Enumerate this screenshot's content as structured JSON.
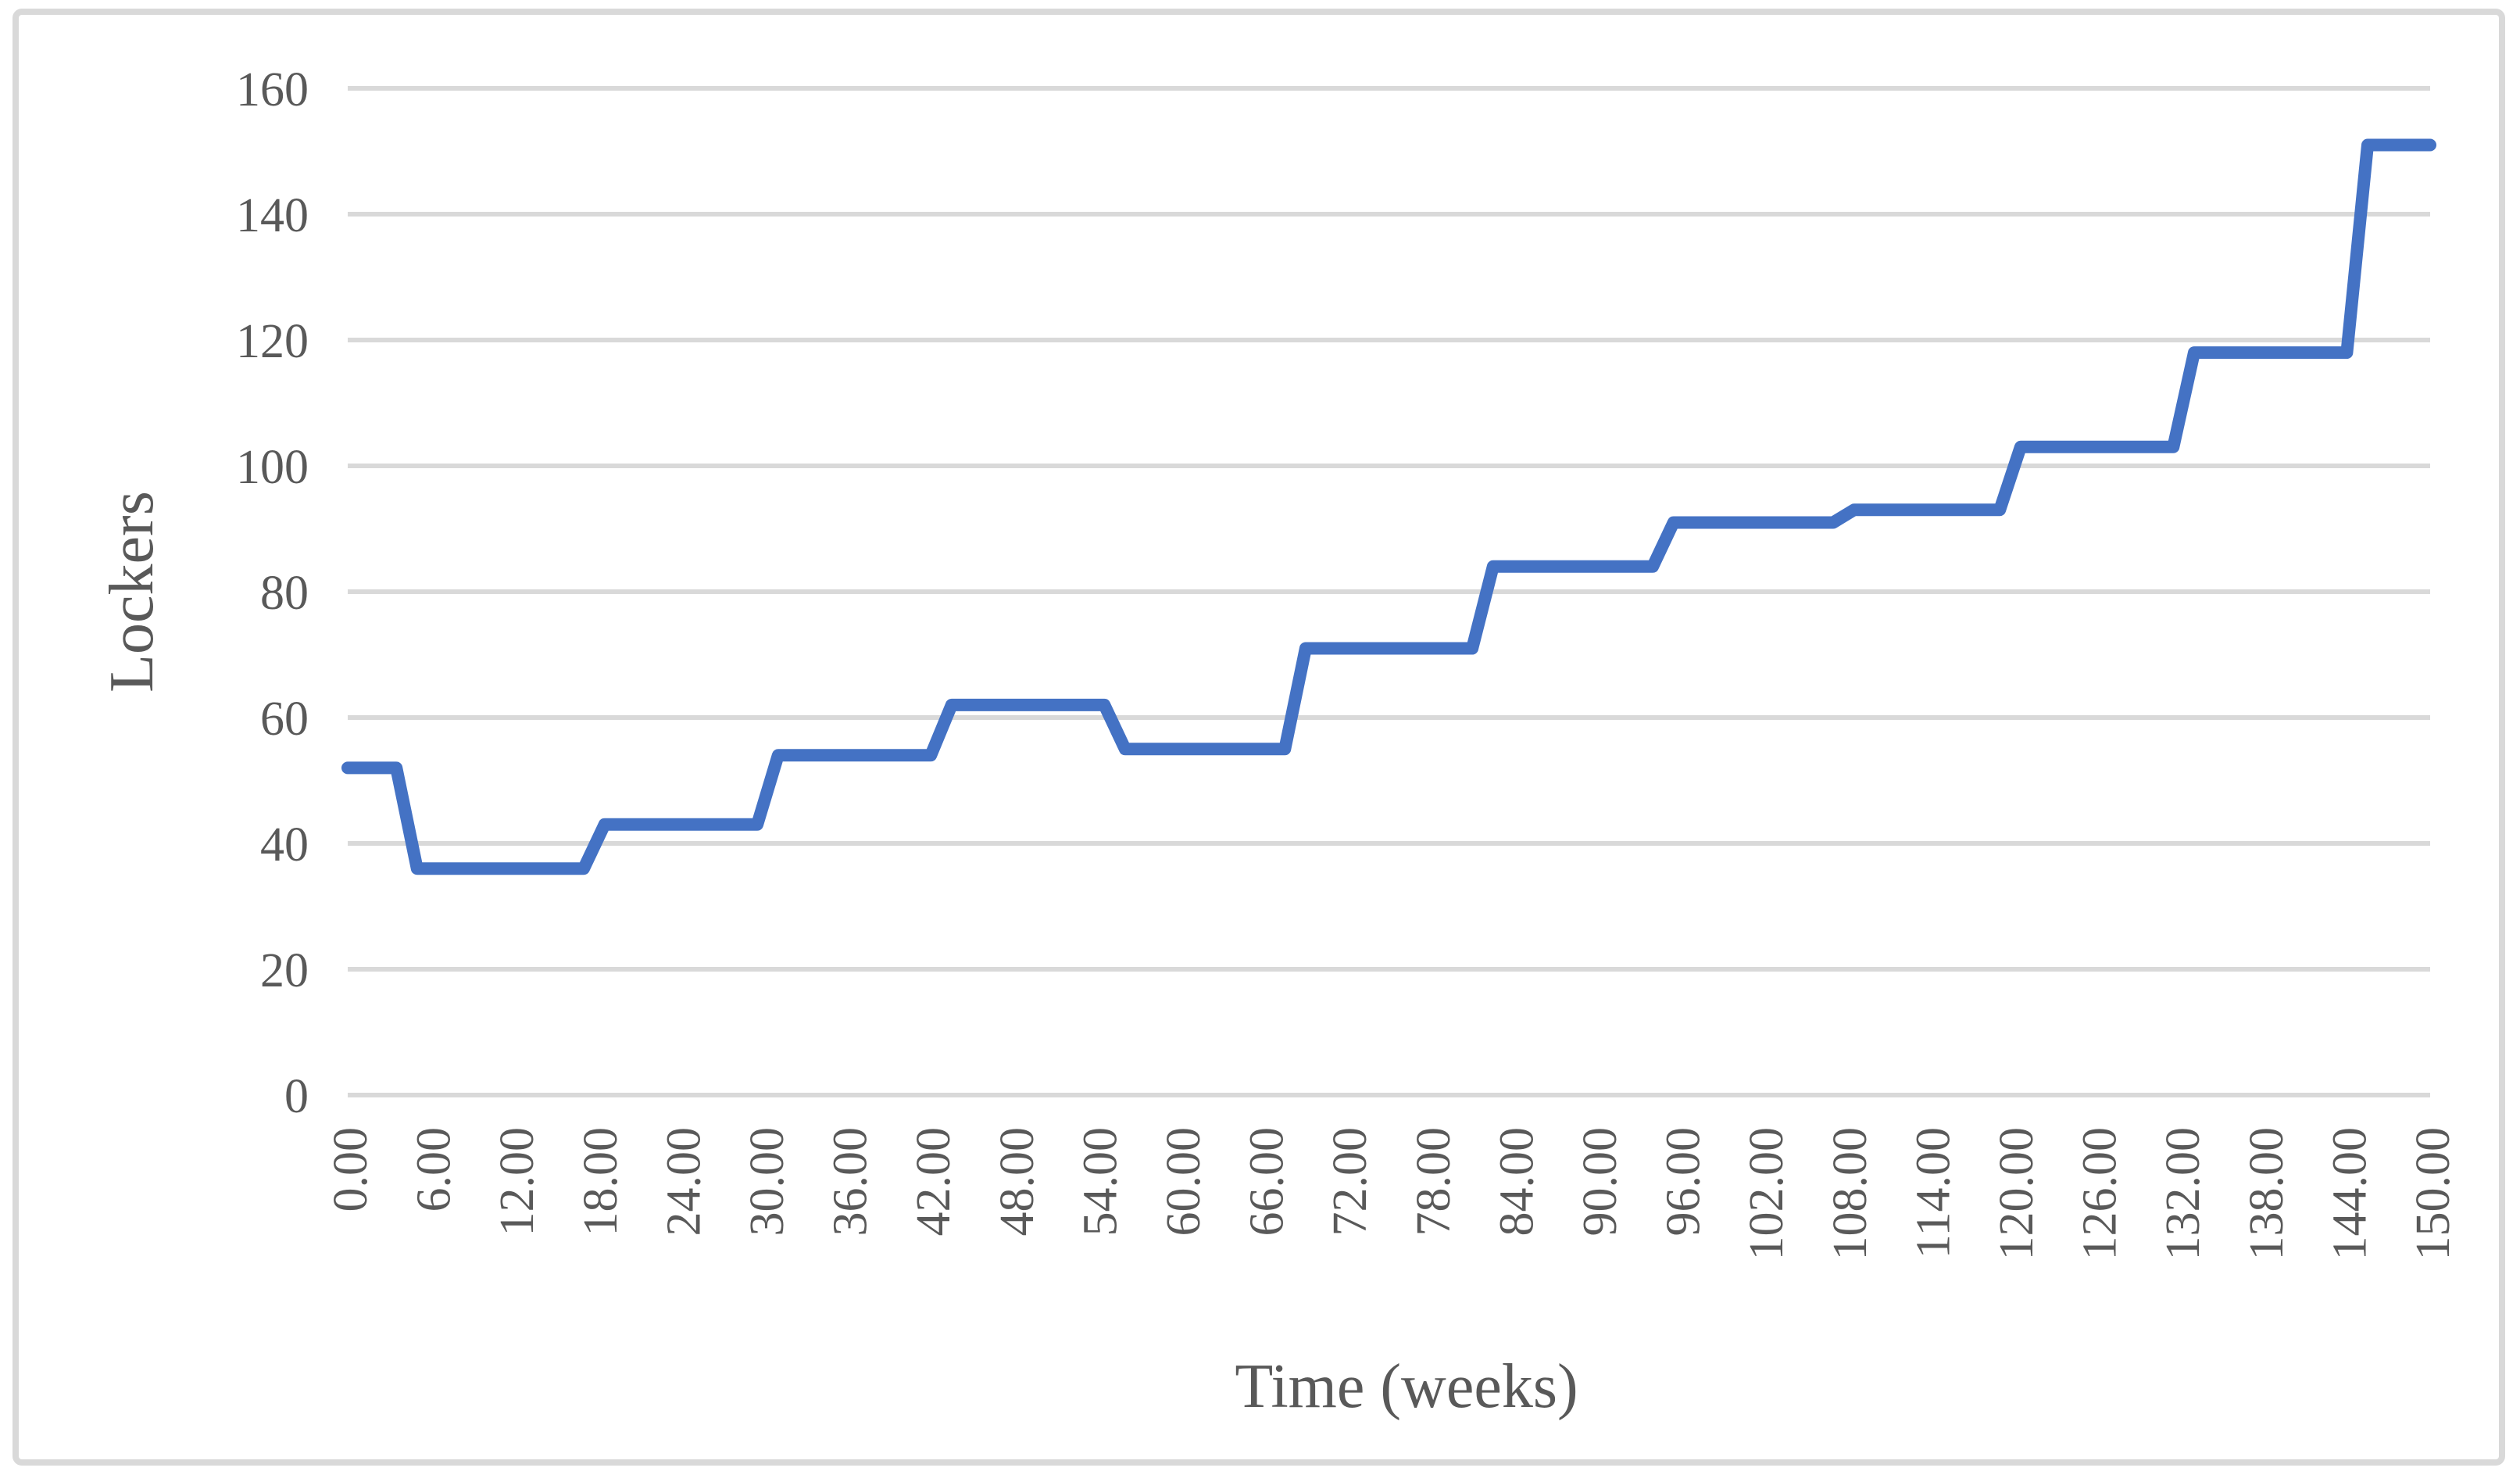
{
  "chart_data": {
    "type": "line",
    "title": "",
    "xlabel": "Time (weeks)",
    "ylabel": "Lockers",
    "xlim": [
      0,
      150
    ],
    "ylim": [
      0,
      160
    ],
    "x_tick_step": 6,
    "x_tick_labels": [
      "0.00",
      "6.00",
      "12.00",
      "18.00",
      "24.00",
      "30.00",
      "36.00",
      "42.00",
      "48.00",
      "54.00",
      "60.00",
      "66.00",
      "72.00",
      "78.00",
      "84.00",
      "90.00",
      "96.00",
      "102.00",
      "108.00",
      "114.00",
      "120.00",
      "126.00",
      "132.00",
      "138.00",
      "144.00",
      "150.00"
    ],
    "y_tick_values": [
      0,
      20,
      40,
      60,
      80,
      100,
      120,
      140,
      160
    ],
    "y_tick_labels": [
      "0",
      "20",
      "40",
      "60",
      "80",
      "100",
      "120",
      "140",
      "160"
    ],
    "grid": "horizontal",
    "legend_position": "none",
    "colors": {
      "line": "#4472C4",
      "gridline": "#D9D9D9",
      "border": "#D9D9D9",
      "text": "#595959",
      "background": "#FFFFFF"
    },
    "series": [
      {
        "name": "Lockers",
        "points": [
          [
            0,
            52
          ],
          [
            3.5,
            52
          ],
          [
            5,
            36
          ],
          [
            17,
            36
          ],
          [
            18.5,
            43
          ],
          [
            29.5,
            43
          ],
          [
            31,
            54
          ],
          [
            42,
            54
          ],
          [
            43.5,
            62
          ],
          [
            54.5,
            62
          ],
          [
            56,
            55
          ],
          [
            67.5,
            55
          ],
          [
            69,
            71
          ],
          [
            81,
            71
          ],
          [
            82.5,
            84
          ],
          [
            94,
            84
          ],
          [
            95.5,
            91
          ],
          [
            107,
            91
          ],
          [
            108.5,
            93
          ],
          [
            119,
            93
          ],
          [
            120.5,
            103
          ],
          [
            131.5,
            103
          ],
          [
            133,
            118
          ],
          [
            144,
            118
          ],
          [
            145.5,
            151
          ],
          [
            150,
            151
          ]
        ]
      }
    ]
  }
}
